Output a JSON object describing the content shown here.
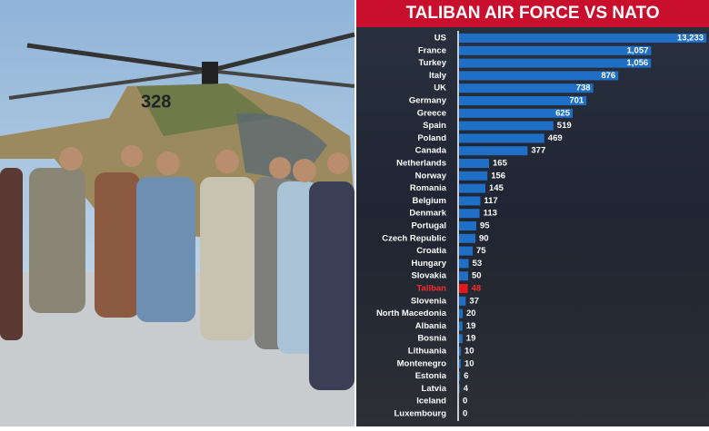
{
  "chart_data": {
    "type": "bar",
    "orientation": "horizontal",
    "title": "TALIBAN AIR FORCE VS NATO",
    "categories": [
      "US",
      "France",
      "Turkey",
      "Italy",
      "UK",
      "Germany",
      "Greece",
      "Spain",
      "Poland",
      "Canada",
      "Netherlands",
      "Norway",
      "Romania",
      "Belgium",
      "Denmark",
      "Portugal",
      "Czech Republic",
      "Croatia",
      "Hungary",
      "Slovakia",
      "Taliban",
      "Slovenia",
      "North Macedonia",
      "Albania",
      "Bosnia",
      "Lithuania",
      "Montenegro",
      "Estonia",
      "Latvia",
      "Iceland",
      "Luxembourg"
    ],
    "values": [
      13233,
      1057,
      1056,
      876,
      738,
      701,
      625,
      519,
      469,
      377,
      165,
      156,
      145,
      117,
      113,
      95,
      90,
      75,
      53,
      50,
      48,
      37,
      20,
      19,
      19,
      10,
      10,
      6,
      4,
      0,
      0
    ],
    "value_labels": [
      "13,233",
      "1,057",
      "1,056",
      "876",
      "738",
      "701",
      "625",
      "519",
      "469",
      "377",
      "165",
      "156",
      "145",
      "117",
      "113",
      "95",
      "90",
      "75",
      "53",
      "50",
      "48",
      "37",
      "20",
      "19",
      "19",
      "10",
      "10",
      "6",
      "4",
      "0",
      "0"
    ],
    "colors": [
      "#1f6fc6",
      "#1f6fc6",
      "#1f6fc6",
      "#1f6fc6",
      "#1f6fc6",
      "#1f6fc6",
      "#1f6fc6",
      "#1f6fc6",
      "#1f6fc6",
      "#1f6fc6",
      "#1f6fc6",
      "#1f6fc6",
      "#1f6fc6",
      "#1f6fc6",
      "#1f6fc6",
      "#1f6fc6",
      "#1f6fc6",
      "#1f6fc6",
      "#1f6fc6",
      "#1f6fc6",
      "#e3181f",
      "#1f6fc6",
      "#1f6fc6",
      "#1f6fc6",
      "#1f6fc6",
      "#1f6fc6",
      "#1f6fc6",
      "#1f6fc6",
      "#1f6fc6",
      "#1f6fc6",
      "#1f6fc6"
    ],
    "label_colors": [
      "#ffffff",
      "#ffffff",
      "#ffffff",
      "#ffffff",
      "#ffffff",
      "#ffffff",
      "#ffffff",
      "#ffffff",
      "#ffffff",
      "#ffffff",
      "#ffffff",
      "#ffffff",
      "#ffffff",
      "#ffffff",
      "#ffffff",
      "#ffffff",
      "#ffffff",
      "#ffffff",
      "#ffffff",
      "#ffffff",
      "#ff2b2b",
      "#ffffff",
      "#ffffff",
      "#ffffff",
      "#ffffff",
      "#ffffff",
      "#ffffff",
      "#ffffff",
      "#ffffff",
      "#ffffff",
      "#ffffff"
    ]
  }
}
